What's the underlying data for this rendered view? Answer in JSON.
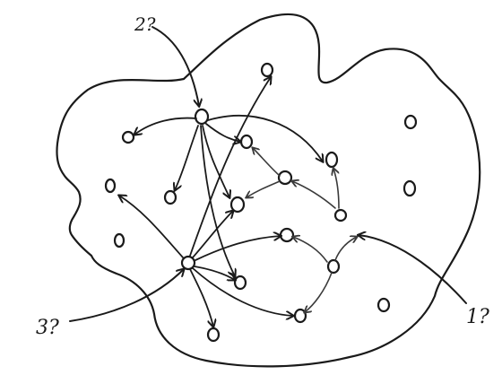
{
  "labels": {
    "source_1": "1?",
    "source_2": "2?",
    "source_3": "3?"
  },
  "ink_color": "#1a1a1a",
  "background": "#ffffff"
}
